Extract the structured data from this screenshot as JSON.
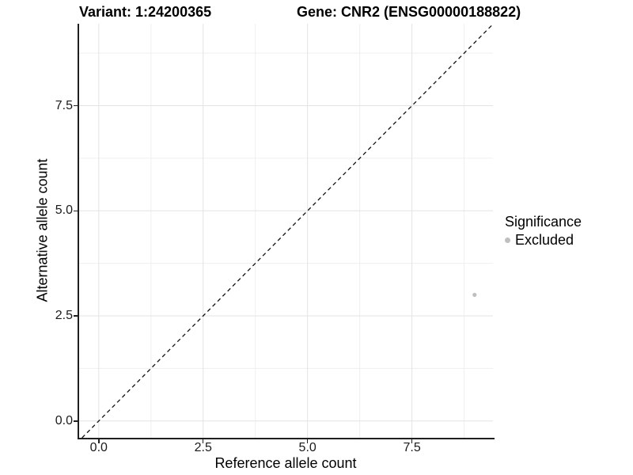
{
  "chart_data": {
    "type": "scatter",
    "titles": [
      "Variant: 1:24200365",
      "Gene: CNR2 (ENSG00000188822)"
    ],
    "xlabel": "Reference allele count",
    "ylabel": "Alternative allele count",
    "xlim": [
      -0.47,
      9.44
    ],
    "ylim": [
      -0.4,
      9.45
    ],
    "x_ticks": [
      0.0,
      2.5,
      5.0,
      7.5
    ],
    "x_tick_labels": [
      "0.0",
      "2.5",
      "5.0",
      "7.5"
    ],
    "y_ticks": [
      0.0,
      2.5,
      5.0,
      7.5
    ],
    "y_tick_labels": [
      "0.0",
      "2.5",
      "5.0",
      "7.5"
    ],
    "x_minor_ticks": [
      1.25,
      3.75,
      6.25,
      8.75
    ],
    "y_minor_ticks": [
      1.25,
      3.75,
      6.25,
      8.75
    ],
    "grid": "major+minor",
    "reference_line": {
      "slope": 1,
      "intercept": 0,
      "style": "dashed"
    },
    "series": [
      {
        "name": "Excluded",
        "color": "#bfbfbf",
        "points": [
          {
            "x": 9,
            "y": 3
          }
        ]
      }
    ],
    "legend": {
      "position": "right",
      "title": "Significance",
      "items": [
        {
          "label": "Excluded",
          "color": "#bfbfbf"
        }
      ]
    }
  },
  "colors": {
    "background": "#ffffff",
    "axis_line": "#1f1f1f",
    "grid_major": "#e3e3e3",
    "grid_minor": "#efefef",
    "reference_line": "#111111",
    "tick_text": "#1a1a1a"
  }
}
